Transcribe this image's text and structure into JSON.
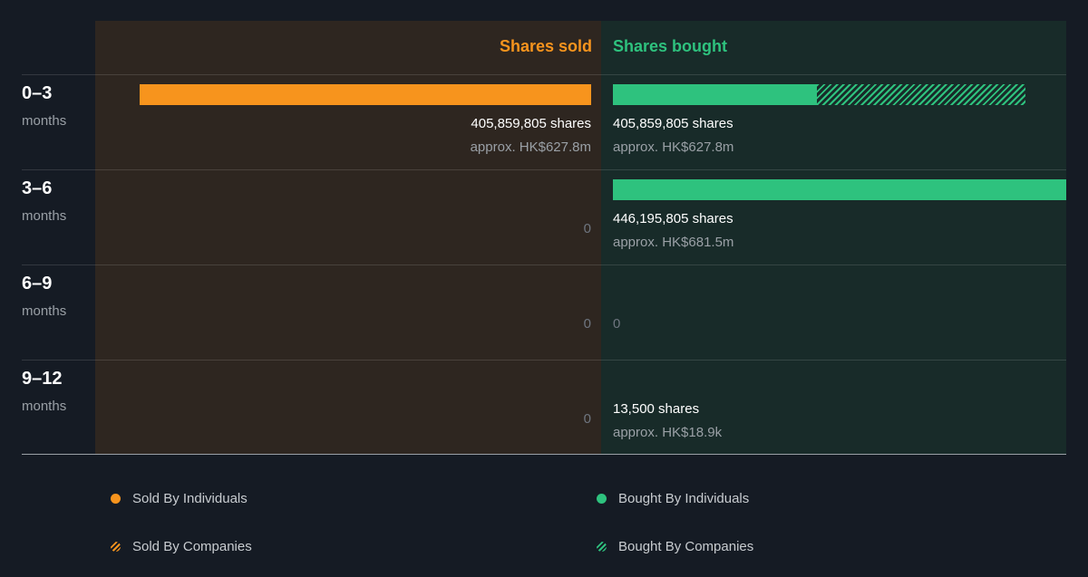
{
  "colors": {
    "sold": "#f7941d",
    "bought": "#2ec27e",
    "panel_sold": "#2e2620",
    "panel_bought": "#182b29",
    "background": "#151b24"
  },
  "chart_data": {
    "type": "bar",
    "orientation": "horizontal-diverging",
    "headers": {
      "sold": "Shares sold",
      "bought": "Shares bought"
    },
    "max_value": 446195805,
    "periods": [
      {
        "label": "0–3",
        "unit": "months",
        "sold": {
          "total": 405859805,
          "individuals": 405859805,
          "companies": 0,
          "shares_text": "405,859,805 shares",
          "approx_text": "approx. HK$627.8m"
        },
        "bought": {
          "total": 405859805,
          "individuals": 201000000,
          "companies": 204859805,
          "shares_text": "405,859,805 shares",
          "approx_text": "approx. HK$627.8m"
        }
      },
      {
        "label": "3–6",
        "unit": "months",
        "sold": {
          "total": 0,
          "individuals": 0,
          "companies": 0,
          "shares_text": "0",
          "approx_text": ""
        },
        "bought": {
          "total": 446195805,
          "individuals": 446195805,
          "companies": 0,
          "shares_text": "446,195,805 shares",
          "approx_text": "approx. HK$681.5m"
        }
      },
      {
        "label": "6–9",
        "unit": "months",
        "sold": {
          "total": 0,
          "individuals": 0,
          "companies": 0,
          "shares_text": "0",
          "approx_text": ""
        },
        "bought": {
          "total": 0,
          "individuals": 0,
          "companies": 0,
          "shares_text": "0",
          "approx_text": ""
        }
      },
      {
        "label": "9–12",
        "unit": "months",
        "sold": {
          "total": 0,
          "individuals": 0,
          "companies": 0,
          "shares_text": "0",
          "approx_text": ""
        },
        "bought": {
          "total": 13500,
          "individuals": 13500,
          "companies": 0,
          "shares_text": "13,500 shares",
          "approx_text": "approx. HK$18.9k"
        }
      }
    ],
    "legend": [
      {
        "label": "Sold By Individuals",
        "style": "solid",
        "side": "sold"
      },
      {
        "label": "Bought By Individuals",
        "style": "solid",
        "side": "bought"
      },
      {
        "label": "Sold By Companies",
        "style": "hatched",
        "side": "sold"
      },
      {
        "label": "Bought By Companies",
        "style": "hatched",
        "side": "bought"
      }
    ]
  }
}
